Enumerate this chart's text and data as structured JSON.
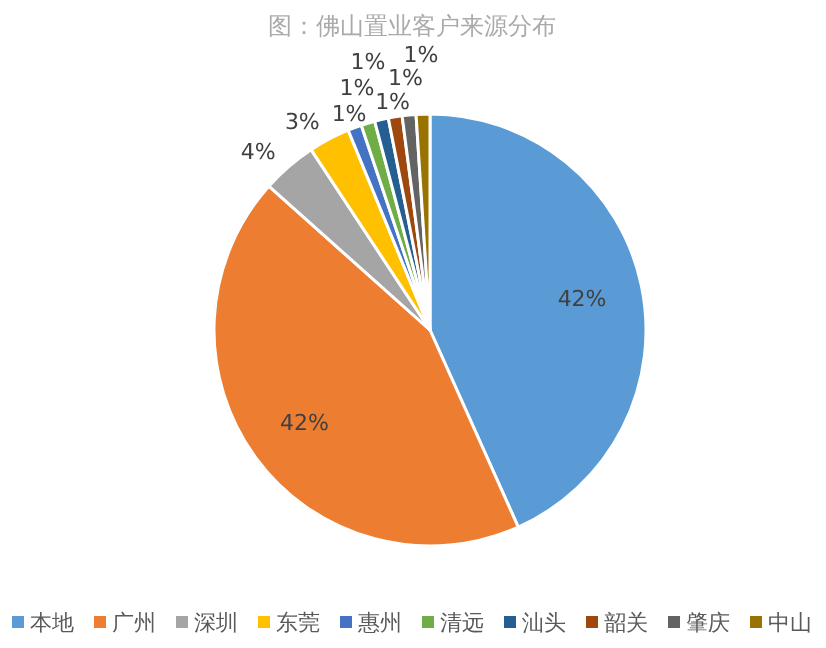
{
  "chart_data": {
    "type": "pie",
    "title": "图：佛山置业客户来源分布",
    "categories": [
      "本地",
      "广州",
      "深圳",
      "东莞",
      "惠州",
      "清远",
      "汕头",
      "韶关",
      "肇庆",
      "中山"
    ],
    "values": [
      42,
      42,
      4,
      3,
      1,
      1,
      1,
      1,
      1,
      1
    ],
    "colors": [
      "#5b9bd5",
      "#ed7d31",
      "#a5a5a5",
      "#ffc000",
      "#4472c4",
      "#70ad47",
      "#255e91",
      "#9e480e",
      "#636363",
      "#997300"
    ],
    "value_labels": [
      "42%",
      "42%",
      "4%",
      "3%",
      "1%",
      "1%",
      "1%",
      "1%",
      "1%",
      "1%"
    ],
    "legend": "bottom"
  }
}
